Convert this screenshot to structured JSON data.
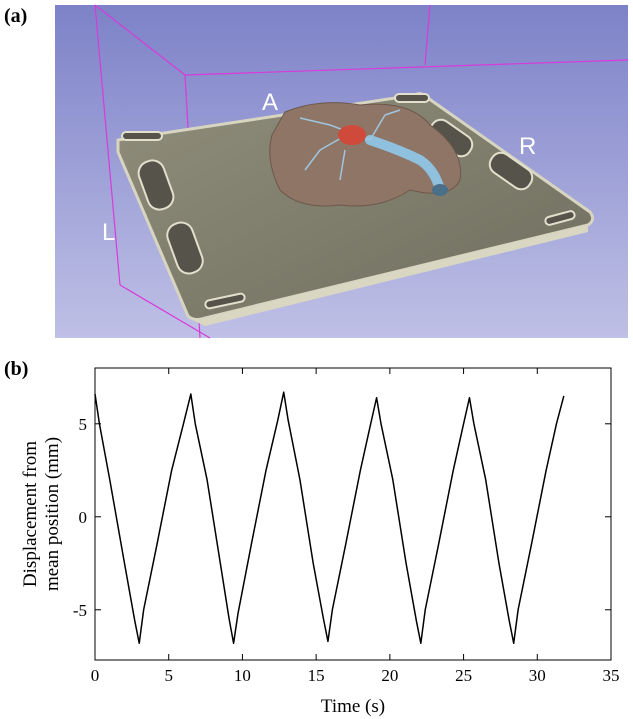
{
  "panel_a": {
    "label": "(a)",
    "orientation_labels": [
      "A",
      "R",
      "L"
    ]
  },
  "panel_b": {
    "label": "(b)"
  },
  "chart_data": {
    "type": "line",
    "xlabel": "Time (s)",
    "ylabel": [
      "Displacement from",
      "mean position (mm)"
    ],
    "x": [
      0,
      0.3,
      1.0,
      2.0,
      2.7,
      3.0,
      3.3,
      4.2,
      5.2,
      6.0,
      6.5,
      6.8,
      7.6,
      8.5,
      9.1,
      9.4,
      9.7,
      10.6,
      11.6,
      12.4,
      12.8,
      13.1,
      13.9,
      14.8,
      15.5,
      15.8,
      16.1,
      17.0,
      18.0,
      18.7,
      19.1,
      19.4,
      20.2,
      21.1,
      21.8,
      22.1,
      22.4,
      23.3,
      24.3,
      25.0,
      25.4,
      25.7,
      26.5,
      27.4,
      28.1,
      28.4,
      28.7,
      29.6,
      30.6,
      31.3,
      31.8
    ],
    "values": [
      6.6,
      5.0,
      2.0,
      -2.5,
      -5.6,
      -6.8,
      -5.0,
      -1.5,
      2.5,
      5.0,
      6.6,
      5.0,
      2.0,
      -2.5,
      -5.5,
      -6.8,
      -5.2,
      -1.5,
      2.5,
      5.2,
      6.7,
      5.2,
      2.0,
      -2.5,
      -5.5,
      -6.7,
      -5.0,
      -1.5,
      2.5,
      5.0,
      6.4,
      5.0,
      2.0,
      -2.5,
      -5.6,
      -6.8,
      -5.0,
      -1.5,
      2.5,
      5.0,
      6.4,
      5.0,
      2.0,
      -2.5,
      -5.6,
      -6.8,
      -5.0,
      -1.5,
      2.5,
      5.0,
      6.5
    ],
    "color": "#000000",
    "xlim": [
      0,
      35
    ],
    "xticks": [
      0,
      5,
      10,
      15,
      20,
      25,
      30,
      35
    ],
    "ylim": [
      -7.7,
      8
    ],
    "yticks": [
      -5,
      0,
      5
    ]
  }
}
